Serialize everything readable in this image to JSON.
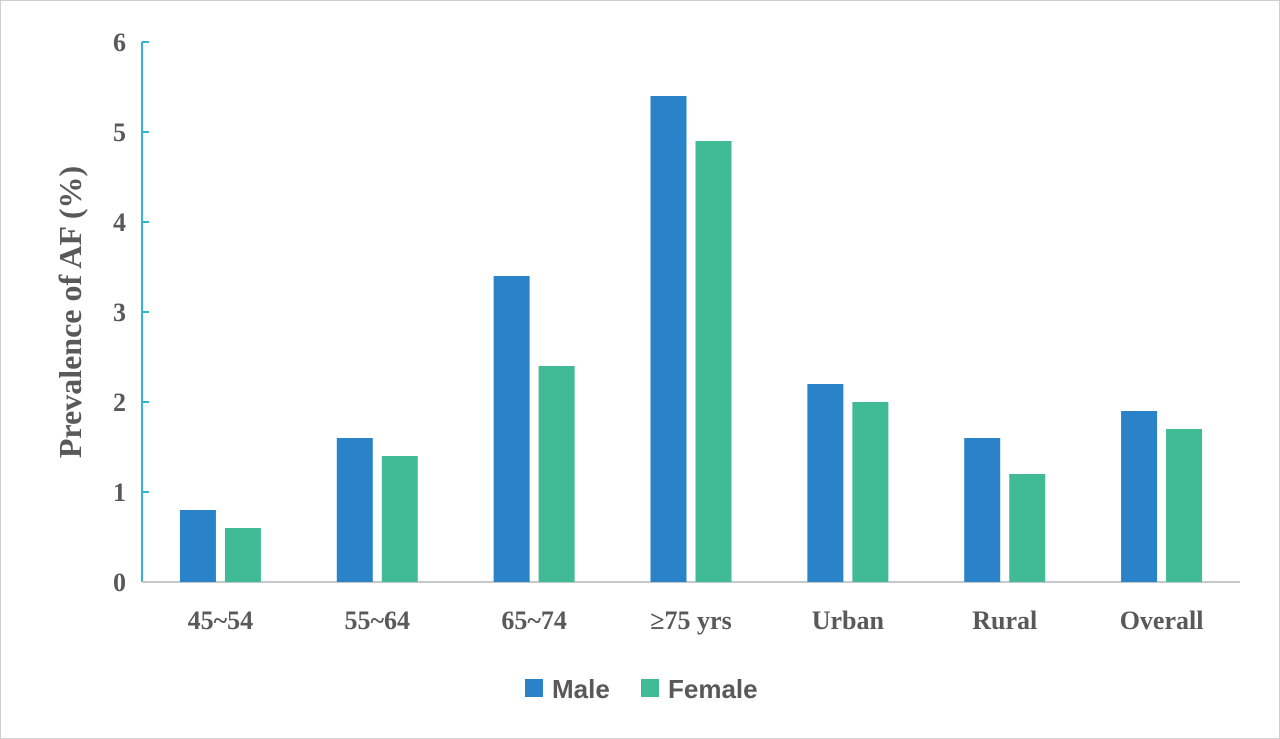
{
  "chart_data": {
    "type": "bar",
    "title": "",
    "xlabel": "",
    "ylabel": "Prevalence of AF (%)",
    "ylim": [
      0,
      6
    ],
    "yticks": [
      0,
      1,
      2,
      3,
      4,
      5,
      6
    ],
    "categories": [
      "45~54",
      "55~64",
      "65~74",
      "≥75 yrs",
      "Urban",
      "Rural",
      "Overall"
    ],
    "series": [
      {
        "name": "Male",
        "color": "#2a82c9",
        "values": [
          0.8,
          1.6,
          3.4,
          5.4,
          2.2,
          1.6,
          1.9
        ]
      },
      {
        "name": "Female",
        "color": "#41bb96",
        "values": [
          0.6,
          1.4,
          2.4,
          4.9,
          2.0,
          1.2,
          1.7
        ]
      }
    ],
    "grid": false,
    "legend": "bottom-center",
    "axis_color": "#33b3d9",
    "baseline_color": "#c8c8c8"
  }
}
